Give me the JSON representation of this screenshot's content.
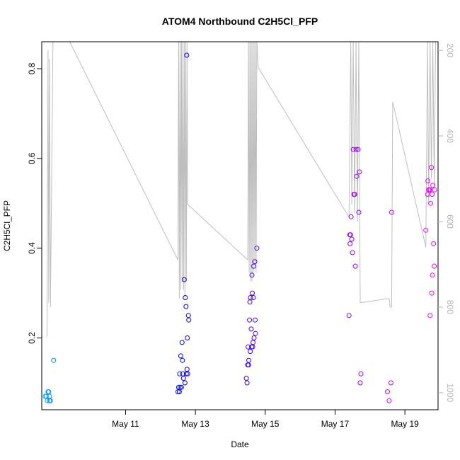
{
  "chart_data": {
    "type": "scatter",
    "title": "ATOM4 Northbound C2H5Cl_PFP",
    "xlabel": "Date",
    "ylabel": "C2H5Cl_PFP",
    "x_range_days": [
      8.6,
      19.95
    ],
    "x_ticks": [
      {
        "day": 11,
        "label": "May 11"
      },
      {
        "day": 13,
        "label": "May 13"
      },
      {
        "day": 15,
        "label": "May 15"
      },
      {
        "day": 17,
        "label": "May 17"
      },
      {
        "day": 19,
        "label": "May 19"
      }
    ],
    "ylim": [
      0.04,
      0.86
    ],
    "y_ticks": [
      {
        "value": 0.2,
        "label": "0.2"
      },
      {
        "value": 0.4,
        "label": "0.4"
      },
      {
        "value": 0.6,
        "label": "0.6"
      },
      {
        "value": 0.8,
        "label": "0.8"
      }
    ],
    "y2_range": [
      1040,
      180
    ],
    "y2_ticks": [
      {
        "value": 200,
        "label": "200"
      },
      {
        "value": 400,
        "label": "400"
      },
      {
        "value": 600,
        "label": "600"
      },
      {
        "value": 800,
        "label": "800"
      },
      {
        "value": 1000,
        "label": "1000"
      }
    ],
    "grid": false,
    "colors": {
      "altitude_line": "#bebebe",
      "point_gradient": [
        "#00aaff",
        "#0000ff",
        "#7f00ff",
        "#ff00ff"
      ]
    },
    "altitude_line": [
      [
        8.75,
        870
      ],
      [
        8.78,
        200
      ],
      [
        8.8,
        790
      ],
      [
        8.82,
        220
      ],
      [
        8.85,
        800
      ],
      [
        8.92,
        180
      ],
      [
        9.4,
        180
      ],
      [
        12.5,
        690
      ],
      [
        12.52,
        180
      ],
      [
        12.54,
        780
      ],
      [
        12.56,
        180
      ],
      [
        12.58,
        760
      ],
      [
        12.6,
        180
      ],
      [
        12.62,
        740
      ],
      [
        12.64,
        180
      ],
      [
        12.66,
        760
      ],
      [
        12.68,
        180
      ],
      [
        12.7,
        780
      ],
      [
        12.72,
        180
      ],
      [
        12.74,
        740
      ],
      [
        12.76,
        180
      ],
      [
        12.78,
        560
      ],
      [
        14.5,
        690
      ],
      [
        14.52,
        180
      ],
      [
        14.54,
        720
      ],
      [
        14.56,
        180
      ],
      [
        14.58,
        740
      ],
      [
        14.6,
        180
      ],
      [
        14.62,
        740
      ],
      [
        14.64,
        180
      ],
      [
        14.66,
        720
      ],
      [
        14.68,
        180
      ],
      [
        14.7,
        700
      ],
      [
        14.72,
        180
      ],
      [
        14.74,
        720
      ],
      [
        14.76,
        180
      ],
      [
        14.8,
        240
      ],
      [
        17.4,
        590
      ],
      [
        17.45,
        180
      ],
      [
        17.48,
        560
      ],
      [
        17.52,
        180
      ],
      [
        17.56,
        580
      ],
      [
        17.6,
        180
      ],
      [
        17.64,
        600
      ],
      [
        17.68,
        180
      ],
      [
        17.72,
        790
      ],
      [
        18.55,
        780
      ],
      [
        18.58,
        800
      ],
      [
        18.62,
        800
      ],
      [
        18.65,
        320
      ],
      [
        19.6,
        660
      ],
      [
        19.65,
        180
      ],
      [
        19.68,
        560
      ],
      [
        19.72,
        180
      ],
      [
        19.76,
        500
      ],
      [
        19.8,
        180
      ],
      [
        19.84,
        520
      ],
      [
        19.88,
        180
      ]
    ],
    "points": [
      [
        8.7,
        0.07,
        0.0
      ],
      [
        8.73,
        0.07,
        0.01
      ],
      [
        8.76,
        0.06,
        0.02
      ],
      [
        8.78,
        0.08,
        0.03
      ],
      [
        8.8,
        0.08,
        0.04
      ],
      [
        8.82,
        0.07,
        0.05
      ],
      [
        8.85,
        0.06,
        0.06
      ],
      [
        8.82,
        0.06,
        0.06
      ],
      [
        8.94,
        0.15,
        0.08
      ],
      [
        12.5,
        0.08,
        0.3
      ],
      [
        12.52,
        0.09,
        0.3
      ],
      [
        12.54,
        0.08,
        0.31
      ],
      [
        12.55,
        0.12,
        0.31
      ],
      [
        12.56,
        0.09,
        0.31
      ],
      [
        12.58,
        0.16,
        0.32
      ],
      [
        12.6,
        0.09,
        0.32
      ],
      [
        12.62,
        0.19,
        0.32
      ],
      [
        12.63,
        0.15,
        0.33
      ],
      [
        12.64,
        0.12,
        0.33
      ],
      [
        12.66,
        0.11,
        0.33
      ],
      [
        12.68,
        0.33,
        0.34
      ],
      [
        12.7,
        0.1,
        0.34
      ],
      [
        12.71,
        0.29,
        0.34
      ],
      [
        12.73,
        0.27,
        0.35
      ],
      [
        12.74,
        0.12,
        0.35
      ],
      [
        12.75,
        0.83,
        0.35
      ],
      [
        12.76,
        0.13,
        0.36
      ],
      [
        12.77,
        0.2,
        0.36
      ],
      [
        12.78,
        0.12,
        0.36
      ],
      [
        12.8,
        0.25,
        0.37
      ],
      [
        12.81,
        0.24,
        0.37
      ],
      [
        14.46,
        0.11,
        0.48
      ],
      [
        14.48,
        0.1,
        0.48
      ],
      [
        14.5,
        0.14,
        0.48
      ],
      [
        14.51,
        0.18,
        0.49
      ],
      [
        14.52,
        0.14,
        0.49
      ],
      [
        14.53,
        0.15,
        0.49
      ],
      [
        14.55,
        0.24,
        0.5
      ],
      [
        14.56,
        0.28,
        0.5
      ],
      [
        14.57,
        0.17,
        0.5
      ],
      [
        14.58,
        0.29,
        0.5
      ],
      [
        14.6,
        0.22,
        0.51
      ],
      [
        14.61,
        0.18,
        0.51
      ],
      [
        14.62,
        0.34,
        0.51
      ],
      [
        14.63,
        0.3,
        0.51
      ],
      [
        14.64,
        0.18,
        0.52
      ],
      [
        14.65,
        0.19,
        0.52
      ],
      [
        14.66,
        0.29,
        0.52
      ],
      [
        14.67,
        0.36,
        0.52
      ],
      [
        14.68,
        0.2,
        0.53
      ],
      [
        14.7,
        0.37,
        0.53
      ],
      [
        14.71,
        0.24,
        0.53
      ],
      [
        14.72,
        0.21,
        0.53
      ],
      [
        14.76,
        0.4,
        0.54
      ],
      [
        17.4,
        0.25,
        0.72
      ],
      [
        17.42,
        0.43,
        0.72
      ],
      [
        17.43,
        0.41,
        0.72
      ],
      [
        17.44,
        0.43,
        0.72
      ],
      [
        17.46,
        0.47,
        0.73
      ],
      [
        17.48,
        0.42,
        0.73
      ],
      [
        17.5,
        0.39,
        0.73
      ],
      [
        17.52,
        0.62,
        0.74
      ],
      [
        17.54,
        0.52,
        0.74
      ],
      [
        17.56,
        0.52,
        0.74
      ],
      [
        17.58,
        0.36,
        0.74
      ],
      [
        17.6,
        0.62,
        0.75
      ],
      [
        17.62,
        0.56,
        0.75
      ],
      [
        17.66,
        0.62,
        0.75
      ],
      [
        17.68,
        0.48,
        0.76
      ],
      [
        17.7,
        0.57,
        0.76
      ],
      [
        17.72,
        0.1,
        0.76
      ],
      [
        17.74,
        0.12,
        0.77
      ],
      [
        18.5,
        0.08,
        0.86
      ],
      [
        18.55,
        0.06,
        0.86
      ],
      [
        18.6,
        0.1,
        0.87
      ],
      [
        18.62,
        0.48,
        0.87
      ],
      [
        19.6,
        0.44,
        0.94
      ],
      [
        19.65,
        0.52,
        0.95
      ],
      [
        19.66,
        0.55,
        0.95
      ],
      [
        19.68,
        0.53,
        0.95
      ],
      [
        19.7,
        0.53,
        0.95
      ],
      [
        19.72,
        0.25,
        0.96
      ],
      [
        19.73,
        0.53,
        0.96
      ],
      [
        19.74,
        0.5,
        0.96
      ],
      [
        19.76,
        0.58,
        0.96
      ],
      [
        19.77,
        0.3,
        0.97
      ],
      [
        19.78,
        0.52,
        0.97
      ],
      [
        19.79,
        0.34,
        0.97
      ],
      [
        19.8,
        0.54,
        0.97
      ],
      [
        19.82,
        0.41,
        0.98
      ],
      [
        19.84,
        0.36,
        0.98
      ],
      [
        19.85,
        0.53,
        0.98
      ]
    ]
  }
}
